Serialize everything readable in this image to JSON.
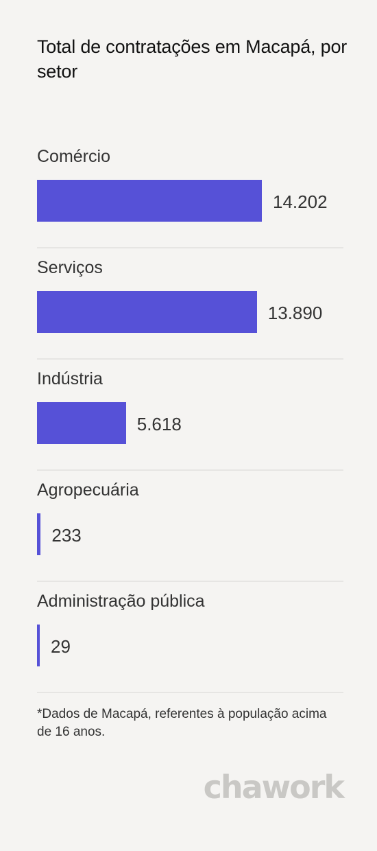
{
  "title": "Total de contratações em Macapá, por setor",
  "chart_data": {
    "type": "bar",
    "orientation": "horizontal",
    "title": "Total de contratações em Macapá, por setor",
    "categories": [
      "Comércio",
      "Serviços",
      "Indústria",
      "Agropecuária",
      "Administração pública"
    ],
    "values": [
      14202,
      13890,
      5618,
      233,
      29
    ],
    "value_labels": [
      "14.202",
      "13.890",
      "5.618",
      "233",
      "29"
    ],
    "bar_color": "#5651d7"
  },
  "footnote": "*Dados de Macapá, referentes à população acima de 16 anos.",
  "logo": "chawork",
  "colors": {
    "background": "#f5f4f2",
    "bar": "#5651d7",
    "logo": "#c9c8c5"
  }
}
